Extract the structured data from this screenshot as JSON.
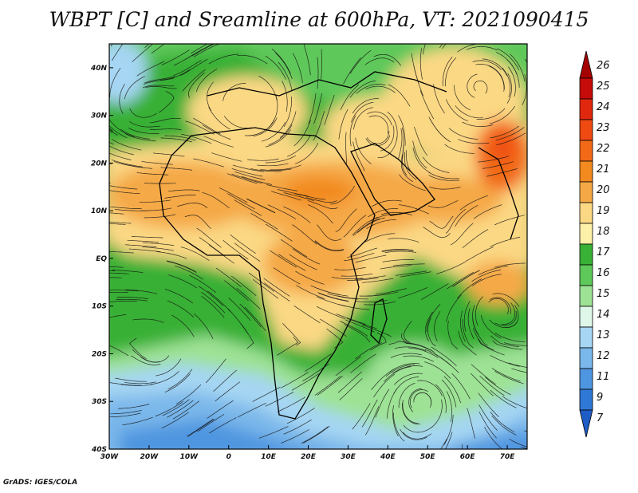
{
  "title": "WBPT [C] and Sreamline at 600hPa, VT: 2021090415",
  "credit": "GrADS: IGES/COLA",
  "map": {
    "lat_labels": [
      "40N",
      "30N",
      "20N",
      "10N",
      "EQ",
      "10S",
      "20S",
      "30S",
      "40S"
    ],
    "lat_values": [
      40,
      30,
      20,
      10,
      0,
      -10,
      -20,
      -30,
      -40
    ],
    "lon_labels": [
      "30W",
      "20W",
      "10W",
      "0",
      "10E",
      "20E",
      "30E",
      "40E",
      "50E",
      "60E",
      "70E"
    ],
    "lon_values": [
      -30,
      -20,
      -10,
      0,
      10,
      20,
      30,
      40,
      50,
      60,
      70
    ],
    "lon_range": [
      -30,
      75
    ],
    "lat_range": [
      -40,
      45
    ]
  },
  "colorbar": {
    "labels": [
      "26",
      "25",
      "24",
      "23",
      "22",
      "21",
      "20",
      "19",
      "18",
      "17",
      "16",
      "15",
      "14",
      "13",
      "12",
      "11",
      "9",
      "7"
    ],
    "colors": {
      "c26": "#a50000",
      "c25": "#c60b0b",
      "c24": "#e0280e",
      "c23": "#ef4a12",
      "c22": "#f26a17",
      "c21": "#f28a1f",
      "c20": "#f5a946",
      "c19": "#fbd884",
      "c18": "#fdf0a8",
      "c17": "#39b036",
      "c16": "#5ec85a",
      "c15": "#9ee295",
      "c14": "#dff7e8",
      "c13": "#a6d6f3",
      "c12": "#7ab7ea",
      "c11": "#4f96e0",
      "c9": "#2f78d6",
      "c7": "#1e5cc6"
    }
  }
}
